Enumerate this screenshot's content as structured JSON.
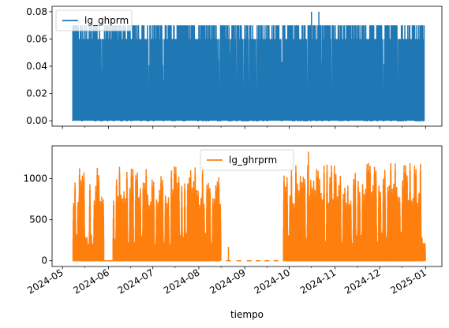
{
  "chart_data": [
    {
      "type": "line",
      "xlabel": "",
      "ylabel": "",
      "ylim": [
        -0.004,
        0.084
      ],
      "yticks": [
        0.0,
        0.02,
        0.04,
        0.06,
        0.08
      ],
      "ytick_labels": [
        "0.00",
        "0.02",
        "0.04",
        "0.06",
        "0.08"
      ],
      "xlim": [
        "2024-04-24",
        "2025-01-12"
      ],
      "legend_loc": "upper left",
      "series": [
        {
          "name": "lg_ghprm",
          "color": "#1f77b4",
          "x_range": [
            "2024-05-08",
            "2024-12-31"
          ],
          "baseline": 0.0,
          "typical_peak": 0.06,
          "frequent_peak": 0.07,
          "max": 0.08,
          "max_dates": [
            "2024-10-16",
            "2024-10-21"
          ]
        }
      ]
    },
    {
      "type": "line",
      "xlabel": "tiempo",
      "ylabel": "",
      "ylim": [
        -70,
        1400
      ],
      "yticks": [
        0,
        500,
        1000
      ],
      "ytick_labels": [
        "0",
        "500",
        "1000"
      ],
      "xlim": [
        "2024-04-24",
        "2025-01-12"
      ],
      "xticks": [
        "2024-05-01",
        "2024-06-01",
        "2024-07-01",
        "2024-08-01",
        "2024-09-01",
        "2024-10-01",
        "2024-11-01",
        "2024-12-01",
        "2025-01-01"
      ],
      "xtick_labels": [
        "2024-05",
        "2024-06",
        "2024-07",
        "2024-08",
        "2024-09",
        "2024-10",
        "2024-11",
        "2024-12",
        "2025-01"
      ],
      "legend_loc": "upper center",
      "series": [
        {
          "name": "lg_ghrprm",
          "color": "#ff7f0e",
          "daily_segments": [
            {
              "start": "2024-05-08",
              "end": "2024-05-28",
              "typical_max": 1150
            },
            {
              "start": "2024-05-28",
              "end": "2024-06-04",
              "typical_max": 0
            },
            {
              "start": "2024-06-04",
              "end": "2024-08-15",
              "typical_max": 1100
            },
            {
              "start": "2024-09-27",
              "end": "2024-12-31",
              "typical_max": 1150
            }
          ],
          "gap": [
            "2024-08-15",
            "2024-09-27"
          ],
          "gap_points": [
            {
              "x": "2024-08-21",
              "y": 170
            },
            {
              "x": "2024-08-21",
              "y": 0
            },
            {
              "x": "2024-08-28",
              "y": 0
            },
            {
              "x": "2024-09-04",
              "y": 0
            },
            {
              "x": "2024-09-10",
              "y": 0
            },
            {
              "x": "2024-09-16",
              "y": 0
            },
            {
              "x": "2024-09-22",
              "y": 0
            }
          ],
          "max": 1330,
          "max_date": "2024-10-14"
        }
      ]
    }
  ]
}
